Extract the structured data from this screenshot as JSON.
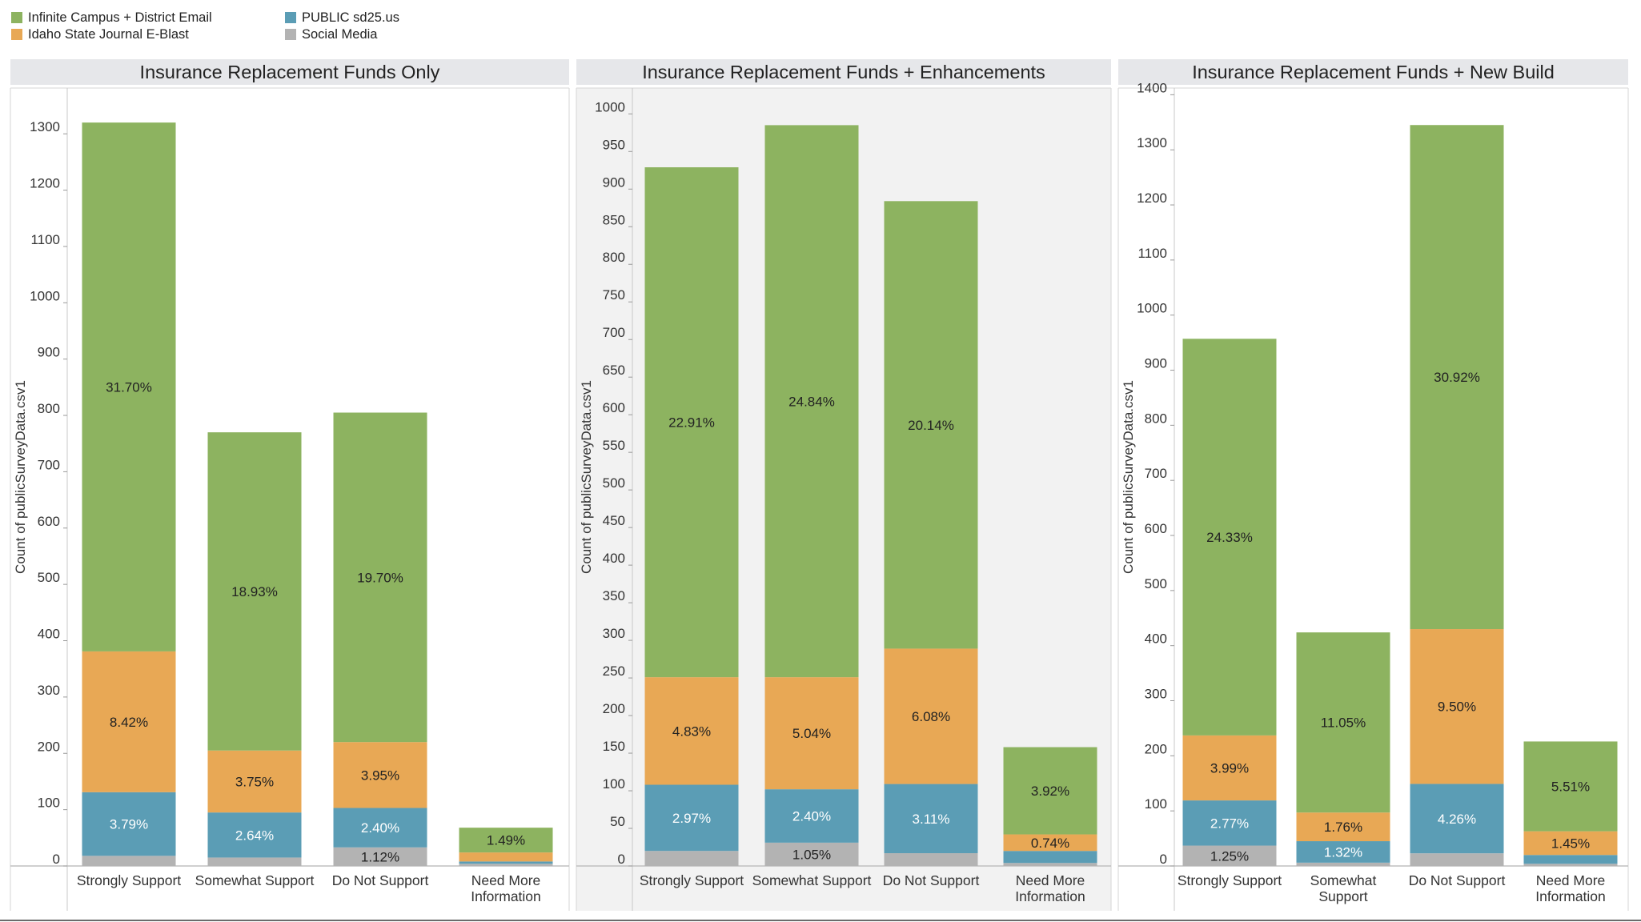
{
  "legend": {
    "items": [
      {
        "label": "Infinite Campus + District Email",
        "color": "#8db360"
      },
      {
        "label": "Idaho State Journal E-Blast",
        "color": "#e8a855"
      },
      {
        "label": "PUBLIC sd25.us",
        "color": "#5b9db5"
      },
      {
        "label": "Social Media",
        "color": "#b3b3b3"
      }
    ]
  },
  "chart_data": [
    {
      "type": "bar",
      "stacked": true,
      "title": "Insurance Replacement Funds Only",
      "ylabel": "Count of publicSurveyData.csv1",
      "ylim": [
        0,
        1350
      ],
      "yticks": [
        0,
        100,
        200,
        300,
        400,
        500,
        600,
        700,
        800,
        900,
        1000,
        1100,
        1200,
        1300
      ],
      "categories": [
        [
          "Strongly Support"
        ],
        [
          "Somewhat Support"
        ],
        [
          "Do Not Support"
        ],
        [
          "Need More",
          "Information"
        ]
      ],
      "series": [
        {
          "name": "Social Media",
          "values": [
            18,
            15,
            33,
            4
          ],
          "labels": [
            "",
            "",
            "1.12%",
            ""
          ]
        },
        {
          "name": "PUBLIC sd25.us",
          "values": [
            113,
            80,
            70,
            4
          ],
          "labels": [
            "3.79%",
            "2.64%",
            "2.40%",
            ""
          ]
        },
        {
          "name": "Idaho State Journal E-Blast",
          "values": [
            250,
            110,
            117,
            16
          ],
          "labels": [
            "8.42%",
            "3.75%",
            "3.95%",
            ""
          ]
        },
        {
          "name": "Infinite Campus + District Email",
          "values": [
            939,
            565,
            585,
            44
          ],
          "labels": [
            "31.70%",
            "18.93%",
            "19.70%",
            "1.49%"
          ]
        }
      ]
    },
    {
      "type": "bar",
      "stacked": true,
      "title": "Insurance Replacement Funds + Enhancements",
      "ylabel": "Count of publicSurveyData.csv1",
      "ylim": [
        0,
        1010
      ],
      "yticks": [
        0,
        50,
        100,
        150,
        200,
        250,
        300,
        350,
        400,
        450,
        500,
        550,
        600,
        650,
        700,
        750,
        800,
        850,
        900,
        950,
        1000
      ],
      "categories": [
        [
          "Strongly Support"
        ],
        [
          "Somewhat Support"
        ],
        [
          "Do Not Support"
        ],
        [
          "Need More",
          "Information"
        ]
      ],
      "series": [
        {
          "name": "Social Media",
          "values": [
            20,
            31,
            17,
            4
          ],
          "labels": [
            "",
            "1.05%",
            "",
            ""
          ]
        },
        {
          "name": "PUBLIC sd25.us",
          "values": [
            88,
            71,
            92,
            16
          ],
          "labels": [
            "2.97%",
            "2.40%",
            "3.11%",
            ""
          ]
        },
        {
          "name": "Idaho State Journal E-Blast",
          "values": [
            143,
            149,
            180,
            22
          ],
          "labels": [
            "4.83%",
            "5.04%",
            "6.08%",
            "0.74%"
          ]
        },
        {
          "name": "Infinite Campus + District Email",
          "values": [
            678,
            734,
            595,
            116
          ],
          "labels": [
            "22.91%",
            "24.84%",
            "20.14%",
            "3.92%"
          ]
        }
      ]
    },
    {
      "type": "bar",
      "stacked": true,
      "title": "Insurance Replacement Funds + New Build",
      "ylabel": "Count of publicSurveyData.csv1",
      "ylim": [
        0,
        1400
      ],
      "yticks": [
        0,
        100,
        200,
        300,
        400,
        500,
        600,
        700,
        800,
        900,
        1000,
        1100,
        1200,
        1300,
        1400
      ],
      "categories": [
        [
          "Strongly Support"
        ],
        [
          "Somewhat",
          "Support"
        ],
        [
          "Do Not Support"
        ],
        [
          "Need More",
          "Information"
        ]
      ],
      "series": [
        {
          "name": "Social Media",
          "values": [
            37,
            6,
            23,
            4
          ],
          "labels": [
            "1.25%",
            "",
            "",
            ""
          ]
        },
        {
          "name": "PUBLIC sd25.us",
          "values": [
            82,
            39,
            126,
            16
          ],
          "labels": [
            "2.77%",
            "1.32%",
            "4.26%",
            ""
          ]
        },
        {
          "name": "Idaho State Journal E-Blast",
          "values": [
            118,
            52,
            281,
            43
          ],
          "labels": [
            "3.99%",
            "1.76%",
            "9.50%",
            "1.45%"
          ]
        },
        {
          "name": "Infinite Campus + District Email",
          "values": [
            720,
            327,
            915,
            163
          ],
          "labels": [
            "24.33%",
            "11.05%",
            "30.92%",
            "5.51%"
          ]
        }
      ]
    }
  ]
}
